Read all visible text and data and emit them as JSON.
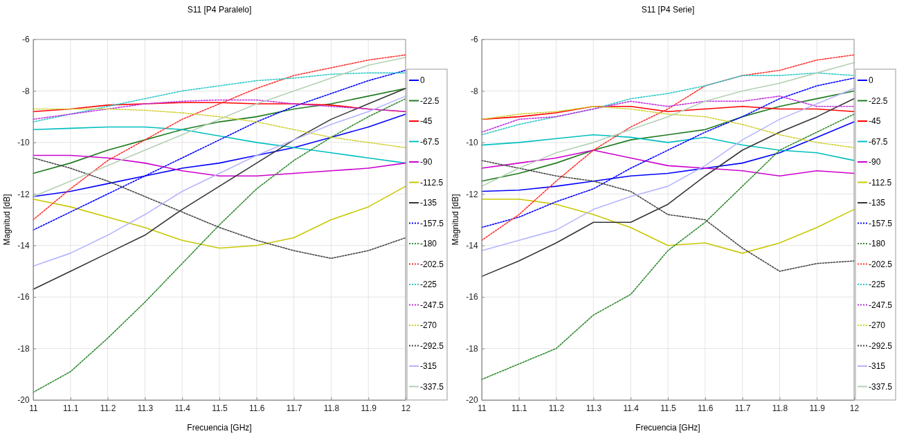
{
  "chart_data": [
    {
      "type": "line",
      "title": "S11  [P4 Paralelo]",
      "xlabel": "Frecuencia [GHz]",
      "ylabel": "Magnitud [dB]",
      "x": [
        11,
        11.1,
        11.2,
        11.3,
        11.4,
        11.5,
        11.6,
        11.7,
        11.8,
        11.9,
        12
      ],
      "xlim": [
        11,
        12
      ],
      "xticks": [
        11,
        11.1,
        11.2,
        11.3,
        11.4,
        11.5,
        11.6,
        11.7,
        11.8,
        11.9,
        12
      ],
      "ylim": [
        -20,
        -6
      ],
      "yticks": [
        -20,
        -18,
        -16,
        -14,
        -12,
        -10,
        -8,
        -6
      ],
      "grid": true,
      "legend": "right",
      "marker": "none",
      "series": [
        {
          "name": "0",
          "color": "#0000ff",
          "line_style": "solid",
          "values": [
            -12.1,
            -11.9,
            -11.6,
            -11.3,
            -11.0,
            -10.8,
            -10.5,
            -10.2,
            -9.8,
            -9.4,
            -8.9
          ]
        },
        {
          "name": "-22.5",
          "color": "#1e7a1e",
          "line_style": "solid",
          "values": [
            -11.2,
            -10.8,
            -10.3,
            -9.9,
            -9.5,
            -9.2,
            -9.0,
            -8.7,
            -8.5,
            -8.2,
            -7.9
          ]
        },
        {
          "name": "-45",
          "color": "#ff0000",
          "line_style": "solid",
          "values": [
            -8.8,
            -8.7,
            -8.55,
            -8.5,
            -8.45,
            -8.45,
            -8.5,
            -8.5,
            -8.55,
            -8.7,
            -8.8
          ]
        },
        {
          "name": "-67.5",
          "color": "#00bfbf",
          "line_style": "solid",
          "values": [
            -9.5,
            -9.45,
            -9.4,
            -9.4,
            -9.5,
            -9.75,
            -10.0,
            -10.2,
            -10.4,
            -10.6,
            -10.8
          ]
        },
        {
          "name": "-90",
          "color": "#cc00cc",
          "line_style": "solid",
          "values": [
            -10.5,
            -10.5,
            -10.6,
            -10.8,
            -11.1,
            -11.3,
            -11.3,
            -11.2,
            -11.1,
            -11.0,
            -10.8
          ]
        },
        {
          "name": "-112.5",
          "color": "#c8c800",
          "line_style": "solid",
          "values": [
            -12.2,
            -12.5,
            -12.9,
            -13.3,
            -13.8,
            -14.1,
            -14.0,
            -13.7,
            -13.0,
            -12.5,
            -11.7
          ]
        },
        {
          "name": "-135",
          "color": "#333333",
          "line_style": "solid",
          "values": [
            -15.7,
            -15.0,
            -14.3,
            -13.6,
            -12.6,
            -11.7,
            -10.8,
            -9.9,
            -9.1,
            -8.5,
            -7.9
          ]
        },
        {
          "name": "-157.5",
          "color": "#0000ff",
          "line_style": "dotted",
          "values": [
            -13.4,
            -12.7,
            -12.0,
            -11.3,
            -10.6,
            -9.9,
            -9.2,
            -8.6,
            -8.1,
            -7.6,
            -7.2
          ]
        },
        {
          "name": "-180",
          "color": "#2e8b2e",
          "line_style": "dotted",
          "values": [
            -19.7,
            -18.9,
            -17.6,
            -16.2,
            -14.7,
            -13.2,
            -11.8,
            -10.7,
            -9.8,
            -9.0,
            -8.3
          ]
        },
        {
          "name": "-202.5",
          "color": "#ff3030",
          "line_style": "dotted",
          "values": [
            -13.0,
            -11.8,
            -10.7,
            -9.9,
            -9.1,
            -8.5,
            -7.9,
            -7.4,
            -7.1,
            -6.8,
            -6.6
          ]
        },
        {
          "name": "-225",
          "color": "#30c8c8",
          "line_style": "dotted",
          "values": [
            -9.2,
            -8.9,
            -8.6,
            -8.3,
            -8.0,
            -7.8,
            -7.6,
            -7.5,
            -7.35,
            -7.3,
            -7.3
          ]
        },
        {
          "name": "-247.5",
          "color": "#c030e0",
          "line_style": "dotted",
          "values": [
            -9.1,
            -8.9,
            -8.7,
            -8.5,
            -8.4,
            -8.35,
            -8.35,
            -8.5,
            -8.6,
            -8.7,
            -8.8
          ]
        },
        {
          "name": "-270",
          "color": "#d0d030",
          "line_style": "dotted",
          "values": [
            -8.7,
            -8.7,
            -8.7,
            -8.75,
            -8.85,
            -9.0,
            -9.2,
            -9.5,
            -9.8,
            -10.0,
            -10.2
          ]
        },
        {
          "name": "-292.5",
          "color": "#444444",
          "line_style": "dotted",
          "values": [
            -10.6,
            -11.0,
            -11.5,
            -12.1,
            -12.7,
            -13.3,
            -13.8,
            -14.2,
            -14.5,
            -14.2,
            -13.7
          ]
        },
        {
          "name": "-315",
          "color": "#b4b4ff",
          "line_style": "solid",
          "values": [
            -14.8,
            -14.3,
            -13.6,
            -12.8,
            -11.9,
            -11.2,
            -10.5,
            -9.9,
            -9.3,
            -8.8,
            -8.2
          ]
        },
        {
          "name": "-337.5",
          "color": "#b4d0b4",
          "line_style": "solid",
          "values": [
            -12.1,
            -11.5,
            -10.9,
            -10.3,
            -9.7,
            -9.1,
            -8.5,
            -8.0,
            -7.5,
            -7.0,
            -6.7
          ]
        }
      ]
    },
    {
      "type": "line",
      "title": "S11  [P4 Serie]",
      "xlabel": "Frecuencia [GHz]",
      "ylabel": "Magnitud [dB]",
      "x": [
        11,
        11.1,
        11.2,
        11.3,
        11.4,
        11.5,
        11.6,
        11.7,
        11.8,
        11.9,
        12
      ],
      "xlim": [
        11,
        12
      ],
      "xticks": [
        11,
        11.1,
        11.2,
        11.3,
        11.4,
        11.5,
        11.6,
        11.7,
        11.8,
        11.9,
        12
      ],
      "ylim": [
        -20,
        -6
      ],
      "yticks": [
        -20,
        -18,
        -16,
        -14,
        -12,
        -10,
        -8,
        -6
      ],
      "grid": true,
      "legend": "right",
      "marker": "none",
      "series": [
        {
          "name": "0",
          "color": "#0000ff",
          "line_style": "solid",
          "values": [
            -11.9,
            -11.85,
            -11.7,
            -11.5,
            -11.3,
            -11.2,
            -11.0,
            -10.8,
            -10.4,
            -9.8,
            -9.2
          ]
        },
        {
          "name": "-22.5",
          "color": "#1e7a1e",
          "line_style": "solid",
          "values": [
            -11.5,
            -11.2,
            -10.8,
            -10.3,
            -9.9,
            -9.7,
            -9.5,
            -9.0,
            -8.6,
            -8.3,
            -8.0
          ]
        },
        {
          "name": "-45",
          "color": "#ff0000",
          "line_style": "solid",
          "values": [
            -9.1,
            -9.0,
            -8.85,
            -8.6,
            -8.6,
            -8.8,
            -8.7,
            -8.6,
            -8.7,
            -8.7,
            -8.8
          ]
        },
        {
          "name": "-67.5",
          "color": "#00bfbf",
          "line_style": "solid",
          "values": [
            -10.1,
            -10.0,
            -9.85,
            -9.7,
            -9.8,
            -10.0,
            -9.8,
            -10.1,
            -10.3,
            -10.4,
            -10.7
          ]
        },
        {
          "name": "-90",
          "color": "#cc00cc",
          "line_style": "solid",
          "values": [
            -11.0,
            -10.8,
            -10.6,
            -10.3,
            -10.6,
            -10.9,
            -11.0,
            -11.1,
            -11.3,
            -11.1,
            -11.2
          ]
        },
        {
          "name": "-112.5",
          "color": "#c8c800",
          "line_style": "solid",
          "values": [
            -12.2,
            -12.2,
            -12.4,
            -12.8,
            -13.3,
            -14.0,
            -13.9,
            -14.3,
            -13.9,
            -13.3,
            -12.6
          ]
        },
        {
          "name": "-135",
          "color": "#333333",
          "line_style": "solid",
          "values": [
            -15.2,
            -14.6,
            -13.9,
            -13.1,
            -13.1,
            -12.4,
            -11.3,
            -10.3,
            -9.6,
            -9.0,
            -8.3
          ]
        },
        {
          "name": "-157.5",
          "color": "#0000ff",
          "line_style": "dotted",
          "values": [
            -13.3,
            -12.9,
            -12.3,
            -11.8,
            -11.0,
            -10.3,
            -9.6,
            -9.0,
            -8.3,
            -7.8,
            -7.5
          ]
        },
        {
          "name": "-180",
          "color": "#2e8b2e",
          "line_style": "dotted",
          "values": [
            -19.2,
            -18.6,
            -18.0,
            -16.7,
            -15.9,
            -14.2,
            -13.1,
            -11.7,
            -10.3,
            -9.6,
            -8.9
          ]
        },
        {
          "name": "-202.5",
          "color": "#ff3030",
          "line_style": "dotted",
          "values": [
            -13.8,
            -12.8,
            -11.5,
            -10.3,
            -9.4,
            -8.7,
            -7.8,
            -7.4,
            -7.2,
            -6.8,
            -6.6
          ]
        },
        {
          "name": "-225",
          "color": "#30c8c8",
          "line_style": "dotted",
          "values": [
            -9.7,
            -9.3,
            -9.0,
            -8.7,
            -8.3,
            -8.1,
            -7.8,
            -7.4,
            -7.4,
            -7.3,
            -7.4
          ]
        },
        {
          "name": "-247.5",
          "color": "#c030e0",
          "line_style": "dotted",
          "values": [
            -9.6,
            -9.1,
            -9.0,
            -8.7,
            -8.4,
            -8.6,
            -8.4,
            -8.4,
            -8.2,
            -8.6,
            -8.6
          ]
        },
        {
          "name": "-270",
          "color": "#d0d030",
          "line_style": "dotted",
          "values": [
            -9.1,
            -8.9,
            -8.8,
            -8.6,
            -8.7,
            -8.9,
            -9.0,
            -9.3,
            -9.7,
            -10.0,
            -10.2
          ]
        },
        {
          "name": "-292.5",
          "color": "#444444",
          "line_style": "dotted",
          "values": [
            -10.7,
            -11.0,
            -11.3,
            -11.5,
            -11.9,
            -12.8,
            -13.0,
            -14.1,
            -15.0,
            -14.7,
            -14.6
          ]
        },
        {
          "name": "-315",
          "color": "#b4b4ff",
          "line_style": "solid",
          "values": [
            -14.2,
            -13.8,
            -13.4,
            -12.6,
            -12.1,
            -11.7,
            -10.9,
            -9.9,
            -9.1,
            -8.5,
            -7.9
          ]
        },
        {
          "name": "-337.5",
          "color": "#b4d0b4",
          "line_style": "solid",
          "values": [
            -11.7,
            -11.0,
            -10.4,
            -10.0,
            -9.5,
            -9.0,
            -8.4,
            -8.0,
            -7.7,
            -7.3,
            -6.9
          ]
        }
      ]
    }
  ]
}
